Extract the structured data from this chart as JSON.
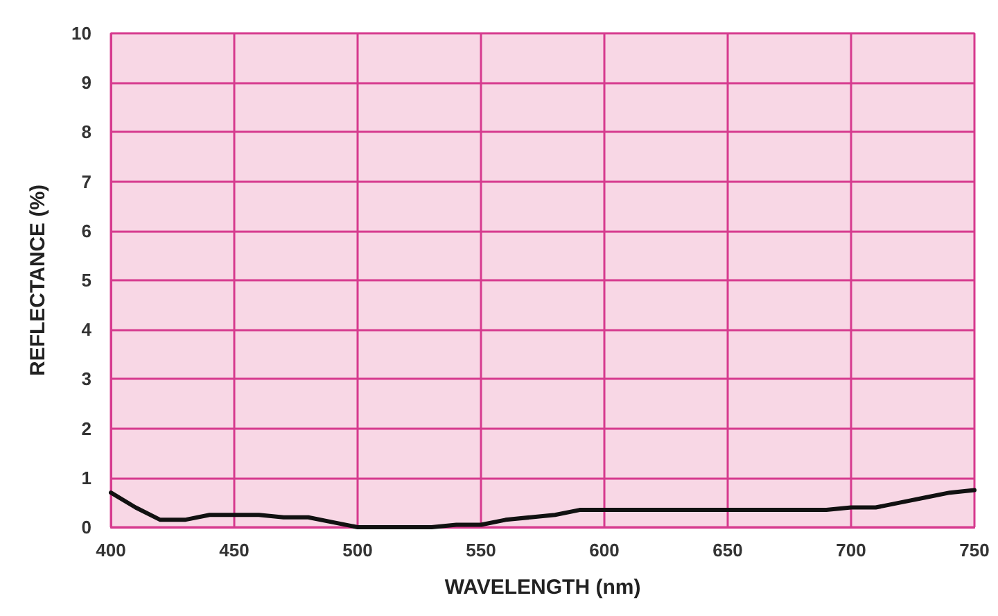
{
  "chart_data": {
    "type": "line",
    "xlabel": "WAVELENGTH (nm)",
    "ylabel": "REFLECTANCE (%)",
    "x": [
      400,
      410,
      420,
      430,
      440,
      450,
      460,
      470,
      480,
      490,
      500,
      510,
      520,
      530,
      540,
      550,
      560,
      570,
      580,
      590,
      600,
      620,
      640,
      660,
      680,
      690,
      700,
      710,
      720,
      730,
      740,
      750
    ],
    "series": [
      {
        "color": "#111111",
        "values": [
          0.7,
          0.4,
          0.15,
          0.15,
          0.25,
          0.25,
          0.25,
          0.2,
          0.2,
          0.1,
          0.0,
          0.0,
          0.0,
          0.0,
          0.05,
          0.05,
          0.15,
          0.2,
          0.25,
          0.35,
          0.35,
          0.35,
          0.35,
          0.35,
          0.35,
          0.35,
          0.4,
          0.4,
          0.5,
          0.6,
          0.7,
          0.75
        ]
      }
    ],
    "xlim": [
      400,
      750
    ],
    "xticks": [
      400,
      450,
      500,
      550,
      600,
      650,
      700,
      750
    ],
    "ylim": [
      0,
      10
    ],
    "yticks": [
      0,
      1,
      2,
      3,
      4,
      5,
      6,
      7,
      8,
      9,
      10
    ],
    "grid": true,
    "marker": "none",
    "line_style": "solid"
  }
}
